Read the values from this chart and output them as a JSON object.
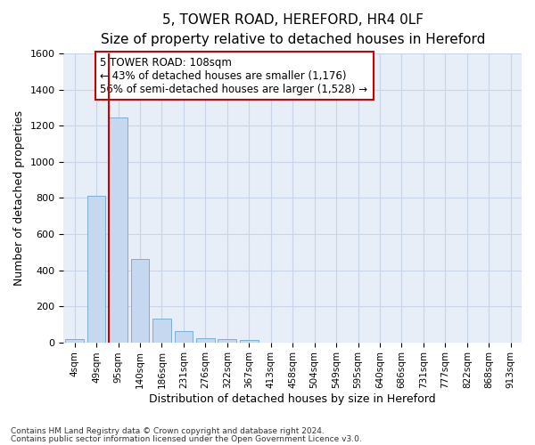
{
  "title_line1": "5, TOWER ROAD, HEREFORD, HR4 0LF",
  "title_line2": "Size of property relative to detached houses in Hereford",
  "xlabel": "Distribution of detached houses by size in Hereford",
  "ylabel": "Number of detached properties",
  "bar_labels": [
    "4sqm",
    "49sqm",
    "95sqm",
    "140sqm",
    "186sqm",
    "231sqm",
    "276sqm",
    "322sqm",
    "367sqm",
    "413sqm",
    "458sqm",
    "504sqm",
    "549sqm",
    "595sqm",
    "640sqm",
    "686sqm",
    "731sqm",
    "777sqm",
    "822sqm",
    "868sqm",
    "913sqm"
  ],
  "bar_values": [
    20,
    810,
    1245,
    460,
    130,
    60,
    25,
    18,
    15,
    0,
    0,
    0,
    0,
    0,
    0,
    0,
    0,
    0,
    0,
    0,
    0
  ],
  "bar_color": "#c5d8f0",
  "bar_edge_color": "#7bafd4",
  "ylim": [
    0,
    1600
  ],
  "yticks": [
    0,
    200,
    400,
    600,
    800,
    1000,
    1200,
    1400,
    1600
  ],
  "vline_x": 1.57,
  "vline_color": "#cc0000",
  "annotation_text_line1": "5 TOWER ROAD: 108sqm",
  "annotation_text_line2": "← 43% of detached houses are smaller (1,176)",
  "annotation_text_line3": "56% of semi-detached houses are larger (1,528) →",
  "annotation_box_color": "#cc0000",
  "annotation_fill_color": "#ffffff",
  "grid_color": "#c8d4e8",
  "background_color": "#e8eef8",
  "footer_line1": "Contains HM Land Registry data © Crown copyright and database right 2024.",
  "footer_line2": "Contains public sector information licensed under the Open Government Licence v3.0.",
  "title_fontsize": 11,
  "subtitle_fontsize": 9.5,
  "tick_fontsize": 7.5,
  "ylabel_fontsize": 9,
  "xlabel_fontsize": 9,
  "annotation_fontsize": 8.5,
  "footer_fontsize": 6.5
}
